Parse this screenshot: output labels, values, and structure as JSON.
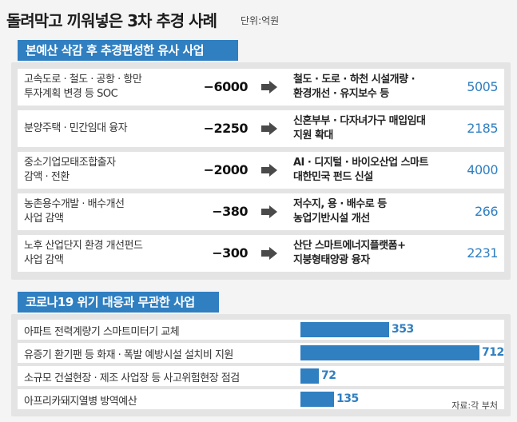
{
  "title": "돌려막고 끼워넣은 3차 추경 사례",
  "unit": "단위:억원",
  "section1": {
    "label": "본예산 삭감 후 추경편성한 유사 사업",
    "rows": [
      {
        "left1": "고속도로 · 철도 · 공항 · 항만",
        "left2": "투자계획 변경 등 SOC",
        "amount": "−6000",
        "right1": "철도 · 도로 · 하천 시설개량 ·",
        "right2": "환경개선 · 유지보수 등",
        "value": "5005"
      },
      {
        "left1": "분양주택 · 민간임대 융자",
        "left2": "",
        "amount": "−2250",
        "right1": "신혼부부 · 다자녀가구 매입임대",
        "right2": "지원 확대",
        "value": "2185"
      },
      {
        "left1": "중소기업모태조합출자",
        "left2": "감액 · 전환",
        "amount": "−2000",
        "right1": "AI · 디지털 · 바이오산업 스마트",
        "right2": "대한민국 펀드 신설",
        "value": "4000"
      },
      {
        "left1": "농촌용수개발 · 배수개선",
        "left2": "사업 감액",
        "amount": "−380",
        "right1": "저수지, 용 · 배수로 등",
        "right2": "농업기반시설 개선",
        "value": "266"
      },
      {
        "left1": "노후 산업단지 환경 개선펀드",
        "left2": "사업 감액",
        "amount": "−300",
        "right1": "산단 스마트에너지플랫폼+",
        "right2": "지붕형태양광 융자",
        "value": "2231"
      }
    ]
  },
  "section2": {
    "label": "코로나19 위기 대응과 무관한 사업",
    "max": 712,
    "rows": [
      {
        "label": "아파트 전력계량기 스마트미터기 교체",
        "value": 353
      },
      {
        "label": "유증기 환기팬 등 화재 · 폭발 예방시설 설치비 지원",
        "value": 712
      },
      {
        "label": "소규모 건설현장 · 제조 사업장 등 사고위험현장 점검",
        "value": 72
      },
      {
        "label": "아프리카돼지열병 방역예산",
        "value": 135
      }
    ]
  },
  "source": "자료:각 부처",
  "colors": {
    "accent": "#2f7fc1",
    "arrow": "#4a4a4a"
  }
}
